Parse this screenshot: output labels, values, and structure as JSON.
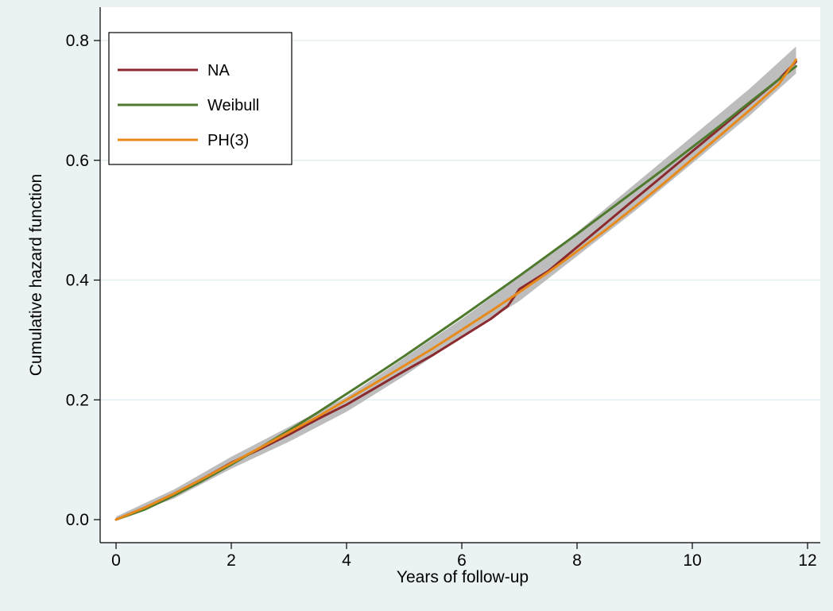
{
  "chart_data": {
    "type": "line",
    "title": "",
    "xlabel": "Years of follow-up",
    "ylabel": "Cumulative hazard function",
    "xlim": [
      0,
      12
    ],
    "ylim": [
      0,
      0.8
    ],
    "x_ticks": [
      0,
      2,
      4,
      6,
      8,
      10,
      12
    ],
    "x_tick_labels": [
      "0",
      "2",
      "4",
      "6",
      "8",
      "10",
      "12"
    ],
    "y_ticks": [
      0.0,
      0.2,
      0.4,
      0.6,
      0.8
    ],
    "y_tick_labels": [
      "0.0",
      "0.2",
      "0.4",
      "0.6",
      "0.8"
    ],
    "grid": "horizontal",
    "legend_position": "top-left",
    "confidence_band": {
      "x": [
        0,
        1,
        2,
        3,
        4,
        5,
        6,
        6.5,
        7,
        8,
        9,
        10,
        11,
        11.8
      ],
      "lower": [
        0,
        0.035,
        0.085,
        0.13,
        0.18,
        0.24,
        0.305,
        0.335,
        0.365,
        0.44,
        0.515,
        0.595,
        0.675,
        0.745
      ],
      "upper": [
        0.005,
        0.05,
        0.105,
        0.155,
        0.205,
        0.27,
        0.335,
        0.37,
        0.405,
        0.48,
        0.56,
        0.64,
        0.72,
        0.79
      ],
      "color": "#bdbdbd"
    },
    "series": [
      {
        "name": "NA",
        "color": "#8b2a2e",
        "x": [
          0,
          0.5,
          1,
          1.5,
          2,
          2.5,
          3,
          3.5,
          4,
          4.5,
          5,
          5.5,
          6,
          6.5,
          6.8,
          7,
          7.5,
          8,
          8.5,
          9,
          9.5,
          10,
          10.5,
          11,
          11.5,
          11.8
        ],
        "y": [
          0,
          0.02,
          0.043,
          0.068,
          0.095,
          0.118,
          0.142,
          0.168,
          0.192,
          0.22,
          0.248,
          0.275,
          0.305,
          0.335,
          0.357,
          0.385,
          0.415,
          0.455,
          0.495,
          0.535,
          0.575,
          0.615,
          0.655,
          0.695,
          0.735,
          0.765
        ]
      },
      {
        "name": "Weibull",
        "color": "#4f7a2e",
        "x": [
          0,
          0.5,
          1,
          1.5,
          2,
          2.5,
          3,
          3.5,
          4,
          4.5,
          5,
          5.5,
          6,
          6.5,
          7,
          7.5,
          8,
          8.5,
          9,
          9.5,
          10,
          10.5,
          11,
          11.5,
          11.8
        ],
        "y": [
          0,
          0.017,
          0.04,
          0.065,
          0.092,
          0.12,
          0.149,
          0.179,
          0.21,
          0.241,
          0.273,
          0.306,
          0.339,
          0.373,
          0.407,
          0.442,
          0.477,
          0.513,
          0.549,
          0.585,
          0.622,
          0.659,
          0.697,
          0.735,
          0.757
        ]
      },
      {
        "name": "PH(3)",
        "color": "#e88a1a",
        "x": [
          0,
          0.5,
          1,
          1.5,
          2,
          2.5,
          3,
          3.5,
          4,
          4.5,
          5,
          5.5,
          6,
          6.5,
          7,
          7.5,
          8,
          8.5,
          9,
          9.5,
          10,
          10.5,
          11,
          11.5,
          11.8
        ],
        "y": [
          0,
          0.02,
          0.043,
          0.068,
          0.094,
          0.12,
          0.146,
          0.172,
          0.2,
          0.228,
          0.257,
          0.286,
          0.317,
          0.348,
          0.38,
          0.413,
          0.448,
          0.484,
          0.522,
          0.561,
          0.602,
          0.643,
          0.684,
          0.727,
          0.768
        ]
      }
    ]
  }
}
